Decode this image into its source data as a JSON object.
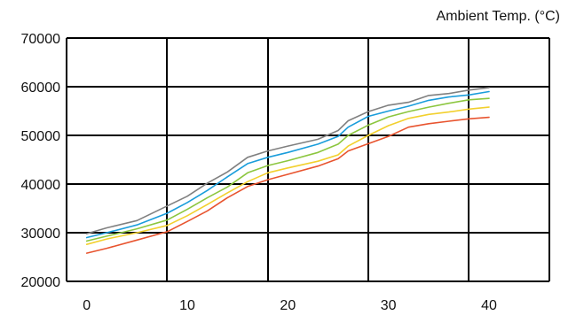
{
  "chart_data": {
    "type": "line",
    "title": "",
    "xlabel": "",
    "ylabel": "",
    "legend_title": "Ambient Temp. (°C)",
    "xlim": [
      -2,
      46
    ],
    "ylim": [
      20000,
      70000
    ],
    "x_ticks": [
      0,
      10,
      20,
      30,
      40
    ],
    "y_ticks": [
      20000,
      30000,
      40000,
      50000,
      60000,
      70000
    ],
    "x_grid": [
      -2,
      8,
      18,
      28,
      38,
      46
    ],
    "y_grid": [
      20000,
      30000,
      40000,
      50000,
      60000,
      70000
    ],
    "grid": true,
    "series": [
      {
        "color": "#808080",
        "x": [
          0,
          2,
          5,
          8,
          10,
          12,
          14,
          16,
          18,
          20,
          23,
          25,
          26,
          28,
          30,
          32,
          34,
          36,
          38,
          40
        ],
        "y": [
          29800,
          31000,
          32500,
          35500,
          37500,
          40200,
          42500,
          45500,
          46800,
          47800,
          49200,
          51000,
          53000,
          54900,
          56200,
          56800,
          58200,
          58600,
          59300,
          59800
        ]
      },
      {
        "color": "#1A9DDB",
        "x": [
          0,
          2,
          5,
          8,
          10,
          12,
          14,
          16,
          18,
          20,
          23,
          25,
          26,
          28,
          30,
          32,
          34,
          36,
          38,
          40
        ],
        "y": [
          29000,
          30000,
          31600,
          34000,
          36200,
          38700,
          41500,
          44200,
          45500,
          46500,
          48200,
          49800,
          51700,
          53900,
          55000,
          56000,
          57200,
          57900,
          58300,
          59000
        ]
      },
      {
        "color": "#8CC63F",
        "x": [
          0,
          2,
          5,
          8,
          10,
          12,
          14,
          16,
          18,
          20,
          23,
          25,
          26,
          28,
          30,
          32,
          34,
          36,
          38,
          40
        ],
        "y": [
          28300,
          29300,
          30800,
          32600,
          34800,
          37200,
          39400,
          42300,
          43800,
          44800,
          46500,
          48200,
          50000,
          52100,
          53800,
          54900,
          55800,
          56600,
          57300,
          57600
        ]
      },
      {
        "color": "#F2D02E",
        "x": [
          0,
          2,
          5,
          8,
          10,
          12,
          14,
          16,
          18,
          20,
          23,
          25,
          26,
          28,
          30,
          32,
          34,
          36,
          38,
          40
        ],
        "y": [
          27600,
          28700,
          30000,
          31500,
          33500,
          35800,
          38200,
          40500,
          42300,
          43300,
          44700,
          46000,
          47800,
          50000,
          52000,
          53500,
          54300,
          54800,
          55400,
          55800
        ]
      },
      {
        "color": "#E8542F",
        "x": [
          0,
          2,
          5,
          8,
          10,
          12,
          14,
          16,
          18,
          20,
          23,
          25,
          26,
          28,
          30,
          32,
          34,
          36,
          38,
          40
        ],
        "y": [
          25800,
          26800,
          28500,
          30200,
          32300,
          34500,
          37200,
          39500,
          40900,
          42000,
          43700,
          45200,
          46800,
          48300,
          49800,
          51700,
          52400,
          52900,
          53400,
          53700
        ]
      }
    ]
  }
}
